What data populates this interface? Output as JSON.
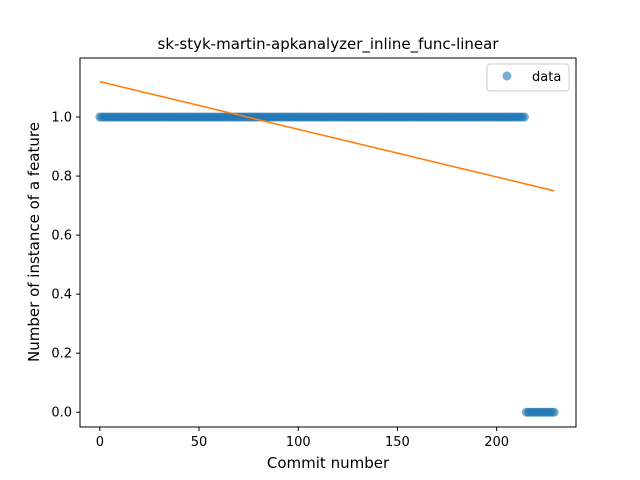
{
  "chart_data": {
    "type": "scatter",
    "title": "sk-styk-martin-apkanalyzer_inline_func-linear",
    "xlabel": "Commit number",
    "ylabel": "Number of instance of a feature",
    "xlim": [
      -10,
      240
    ],
    "ylim": [
      -0.05,
      1.2
    ],
    "xticks": [
      0,
      50,
      100,
      150,
      200
    ],
    "yticks": [
      0.0,
      0.2,
      0.4,
      0.6,
      0.8,
      1.0
    ],
    "xtick_labels": [
      "0",
      "50",
      "100",
      "150",
      "200"
    ],
    "ytick_labels": [
      "0.0",
      "0.2",
      "0.4",
      "0.6",
      "0.8",
      "1.0"
    ],
    "grid": false,
    "legend_position": "top-right",
    "series": [
      {
        "name": "data",
        "kind": "scatter",
        "color": "#1f77b4",
        "segments": [
          {
            "x_start": 0,
            "x_end": 214,
            "y": 1.0
          },
          {
            "x_start": 215,
            "x_end": 229,
            "y": 0.0
          }
        ]
      },
      {
        "kind": "line",
        "color": "#ff7f0e",
        "points": [
          {
            "x": 0,
            "y": 1.12
          },
          {
            "x": 229,
            "y": 0.75
          }
        ]
      }
    ]
  }
}
